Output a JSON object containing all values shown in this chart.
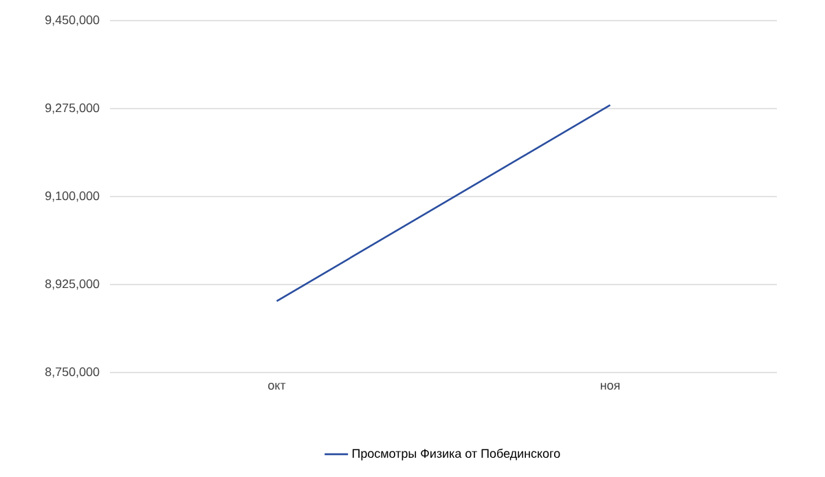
{
  "chart_data": {
    "type": "line",
    "categories": [
      "окт",
      "ноя"
    ],
    "series": [
      {
        "name": "Просмотры Физика от Побединского",
        "color": "#2a4ea0",
        "values": [
          8892000,
          9282000
        ]
      }
    ],
    "ylim": [
      8750000,
      9450000
    ],
    "yticks": [
      {
        "value": 8750000,
        "label": "8,750,000"
      },
      {
        "value": 8925000,
        "label": "8,925,000"
      },
      {
        "value": 9100000,
        "label": "9,100,000"
      },
      {
        "value": 9275000,
        "label": "9,275,000"
      },
      {
        "value": 9450000,
        "label": "9,450,000"
      }
    ],
    "grid": "y",
    "legend": "bottom",
    "marker": "none",
    "line_style": "solid"
  }
}
